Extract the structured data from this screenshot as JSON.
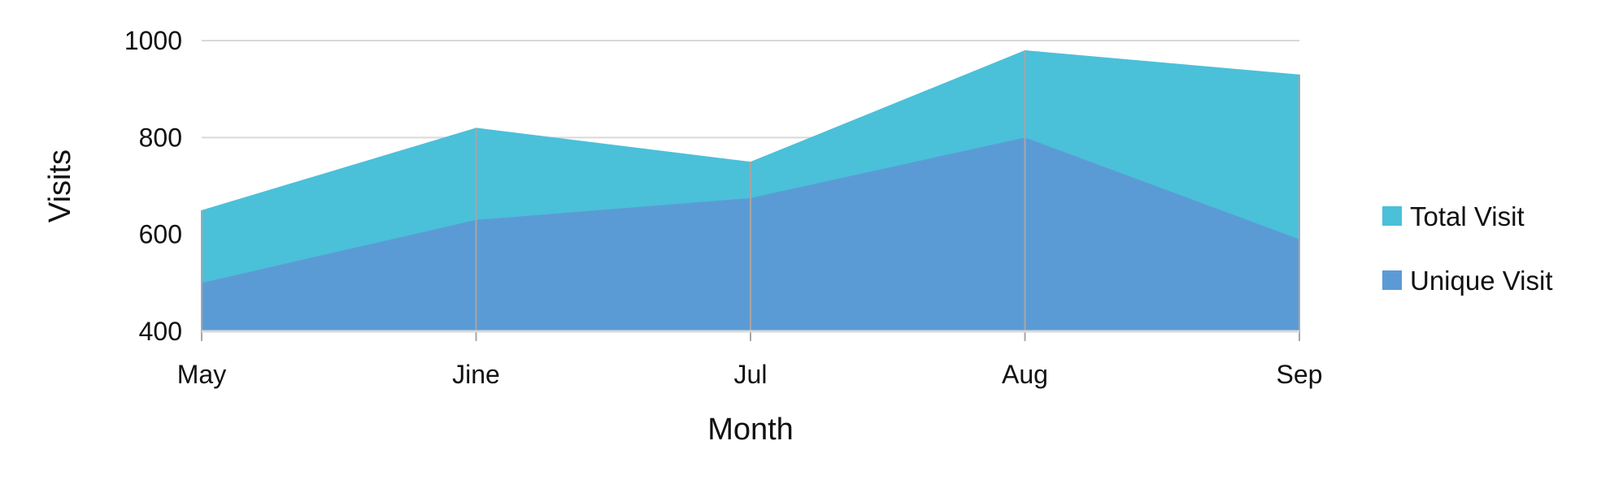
{
  "chart_data": {
    "type": "area",
    "categories": [
      "May",
      "Jine",
      "Jul",
      "Aug",
      "Sep"
    ],
    "series": [
      {
        "name": "Total Visit",
        "values": [
          650,
          820,
          750,
          980,
          930
        ],
        "color": "#4BC0D9"
      },
      {
        "name": "Unique Visit",
        "values": [
          500,
          630,
          675,
          800,
          590
        ],
        "color": "#5B9BD5"
      }
    ],
    "title": "",
    "xlabel": "Month",
    "ylabel": "Visits",
    "ylim": [
      400,
      1000
    ],
    "yticks": [
      400,
      600,
      800,
      1000
    ],
    "grid": true,
    "legend_position": "right",
    "gridline_color": "#D9D9D9",
    "axis_color": "#D9D9D9",
    "vertical_line_color": "#A6A6A6"
  }
}
